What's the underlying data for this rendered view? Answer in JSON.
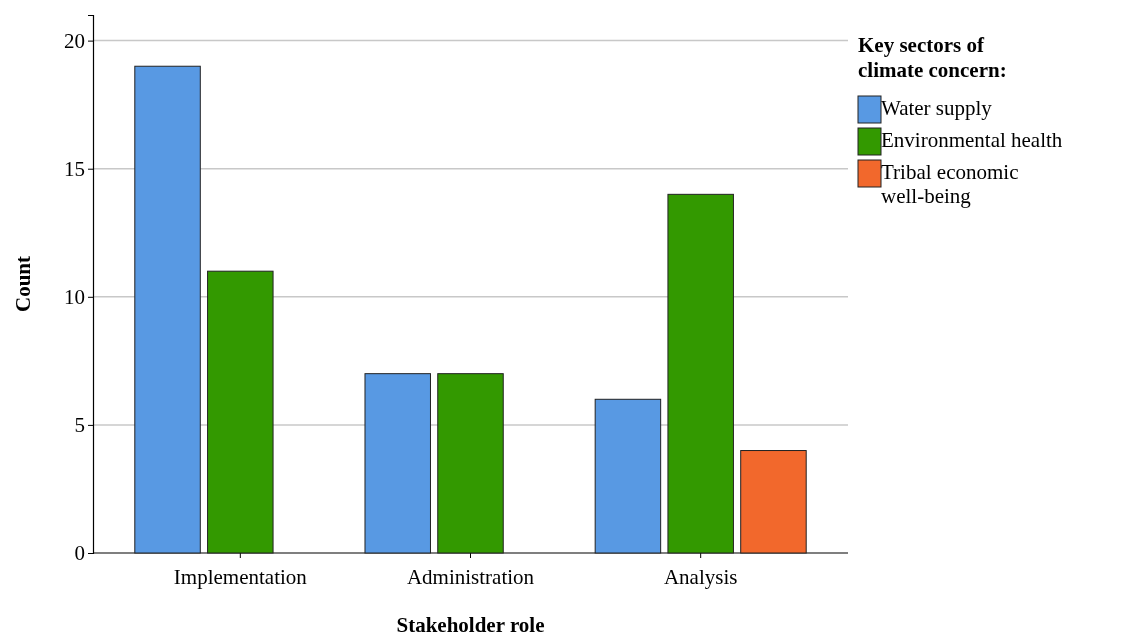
{
  "chart_data": {
    "type": "bar",
    "xlabel": "Stakeholder role",
    "ylabel": "Count",
    "legend_title": "Key sectors of climate concern:",
    "categories": [
      "Implementation",
      "Administration",
      "Analysis"
    ],
    "series": [
      {
        "name": "Water supply",
        "color": "#5899e3",
        "values": [
          19,
          7,
          6
        ]
      },
      {
        "name": "Environmental health",
        "color": "#339900",
        "values": [
          11,
          7,
          14
        ]
      },
      {
        "name": "Tribal economic well-being",
        "color": "#f2682c",
        "values": [
          null,
          null,
          4
        ]
      }
    ],
    "ylim": [
      0,
      21
    ],
    "yticks": [
      0,
      5,
      10,
      15,
      20
    ],
    "grid": "y",
    "legend": "right"
  }
}
